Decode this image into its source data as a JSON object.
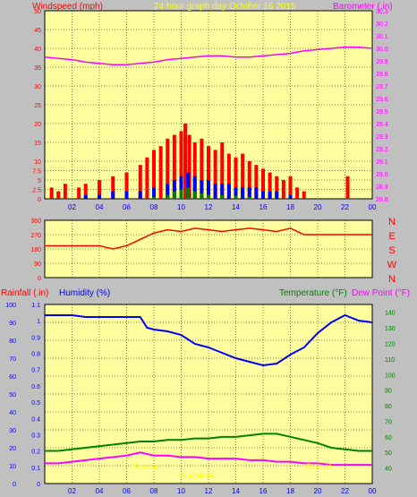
{
  "header": {
    "title": "24 hour graph day   October 16 2015",
    "windspeed_label": "Windspeed (mph)",
    "barometer_label": "Barometer (.in)"
  },
  "lower_header": {
    "rainfall_label": "Rainfall (.in)",
    "humidity_label": "Humidity (%)",
    "temperature_label": "Temperature (°F)",
    "dewpoint_label": "Dew Point (°F)"
  },
  "overlay": {
    "sunrise": "Sunrise",
    "noon": "Noontime",
    "sunset": "Sunset"
  },
  "colors": {
    "background": "#c0c0c0",
    "plot_bg": "#ffffa0",
    "grid": "#000000",
    "wind_gust": "#ff0000",
    "wind_avg": "#0000ff",
    "wind_low": "#008000",
    "barometer": "#ff00ff",
    "direction": "#ff0000",
    "humidity": "#0000ff",
    "temperature": "#008000",
    "dewpoint": "#ff00ff",
    "rainfall": "#0000ff",
    "title_yellow": "#ffff00",
    "windspeed_red": "#ff0000",
    "temp_green": "#008000"
  },
  "chart_data": [
    {
      "type": "bar",
      "title": "24 hour graph day   October 16 2015",
      "ylabel": "Windspeed (mph)",
      "y2label": "Barometer (.in)",
      "x_ticks": [
        "02",
        "04",
        "06",
        "08",
        "10",
        "12",
        "14",
        "16",
        "18",
        "20",
        "22",
        "00"
      ],
      "ylim": [
        0,
        50
      ],
      "y_ticks": [
        0,
        2.5,
        5,
        7.5,
        10,
        15,
        20,
        25,
        30,
        35,
        40,
        45,
        50
      ],
      "y2lim": [
        28.8,
        30.3
      ],
      "y2_ticks": [
        28.8,
        28.9,
        29.0,
        29.1,
        29.2,
        29.3,
        29.4,
        29.5,
        29.6,
        29.7,
        29.8,
        29.9,
        30.0,
        30.1,
        30.2,
        30.3
      ],
      "grid": true,
      "series": [
        {
          "key": "gust",
          "x": [
            0.5,
            1,
            1.5,
            2.5,
            3,
            4,
            5,
            6,
            7,
            7.5,
            8,
            8.5,
            9,
            9.5,
            10,
            10.3,
            10.6,
            11,
            11.5,
            12,
            12.5,
            13,
            13.5,
            14,
            14.5,
            15,
            15.5,
            16,
            16.5,
            17,
            17.5,
            18,
            18.5,
            19,
            22.2
          ],
          "values": [
            3,
            2,
            4,
            3,
            4,
            5,
            6,
            7,
            9,
            11,
            13,
            14,
            16,
            17,
            18,
            20,
            17,
            15,
            16,
            14,
            13,
            15,
            12,
            11,
            12,
            10,
            9,
            8,
            7,
            6,
            5,
            6,
            3,
            2,
            6
          ]
        },
        {
          "key": "avg",
          "x": [
            3,
            4,
            5,
            6,
            7,
            8,
            9,
            9.5,
            10,
            10.5,
            11,
            11.5,
            12,
            12.5,
            13,
            13.5,
            14,
            14.5,
            15,
            15.5,
            16,
            16.5,
            17,
            18
          ],
          "values": [
            1,
            1,
            2,
            2,
            2,
            3,
            4,
            5,
            6,
            7,
            6,
            5,
            5,
            4,
            4,
            4,
            3,
            3,
            3,
            3,
            2,
            2,
            2,
            1
          ]
        },
        {
          "key": "low",
          "x": [
            8,
            9,
            9.5,
            10,
            10.5,
            11,
            11.5,
            12,
            13,
            14,
            15
          ],
          "values": [
            0.5,
            1,
            2,
            2.5,
            3,
            2,
            1.5,
            1,
            1,
            0.8,
            0.5
          ]
        },
        {
          "key": "barometer",
          "x": [
            0,
            1,
            2,
            3,
            4,
            5,
            6,
            7,
            8,
            9,
            10,
            11,
            12,
            13,
            14,
            15,
            16,
            17,
            18,
            19,
            20,
            21,
            22,
            23,
            24
          ],
          "values": [
            29.93,
            29.92,
            29.91,
            29.89,
            29.88,
            29.87,
            29.87,
            29.88,
            29.89,
            29.91,
            29.92,
            29.93,
            29.94,
            29.94,
            29.93,
            29.93,
            29.94,
            29.95,
            29.96,
            29.98,
            29.99,
            30.0,
            30.01,
            30.01,
            30.0
          ]
        }
      ]
    },
    {
      "type": "line",
      "ylim": [
        0,
        360
      ],
      "y_ticks": [
        0,
        90,
        180,
        270,
        360
      ],
      "y2_labels": [
        "N",
        "W",
        "S",
        "E",
        "N"
      ],
      "series": [
        {
          "key": "direction",
          "x": [
            0,
            0.5,
            1,
            2,
            3,
            4,
            5,
            6,
            6.5,
            7,
            7.5,
            8,
            9,
            10,
            11,
            12,
            13,
            14,
            15,
            16,
            17,
            18,
            19,
            20,
            24
          ],
          "values": [
            200,
            200,
            200,
            200,
            200,
            200,
            180,
            200,
            220,
            240,
            260,
            280,
            300,
            290,
            310,
            300,
            290,
            300,
            310,
            300,
            290,
            310,
            270,
            270,
            270
          ]
        }
      ]
    },
    {
      "type": "line",
      "ylabel": "Humidity (%)",
      "y2label": "Temperature (°F)",
      "ylim": [
        0,
        100
      ],
      "y_ticks": [
        0,
        10,
        20,
        30,
        40,
        50,
        60,
        70,
        80,
        90,
        100
      ],
      "rain_ticks": [
        0,
        0.1,
        0.2,
        0.3,
        0.4,
        0.5,
        0.6,
        0.7,
        0.8,
        0.9,
        1,
        1.1
      ],
      "y2lim": [
        30,
        145
      ],
      "y2_ticks": [
        40,
        50,
        60,
        70,
        80,
        90,
        100,
        110,
        120,
        130,
        140
      ],
      "x_ticks": [
        "02",
        "04",
        "06",
        "08",
        "10",
        "12",
        "14",
        "16",
        "18",
        "20",
        "22",
        "00"
      ],
      "grid": true,
      "series": [
        {
          "key": "humidity",
          "x": [
            0,
            1,
            2,
            3,
            4,
            5,
            6,
            7,
            7.5,
            8,
            9,
            10,
            11,
            12,
            13,
            14,
            15,
            16,
            17,
            18,
            19,
            20,
            21,
            22,
            23,
            24
          ],
          "values": [
            94,
            94,
            94,
            93,
            93,
            93,
            93,
            93,
            87,
            86,
            85,
            83,
            78,
            76,
            73,
            70,
            68,
            66,
            67,
            72,
            76,
            84,
            90,
            94,
            91,
            90
          ]
        },
        {
          "key": "temperature",
          "x": [
            0,
            1,
            2,
            3,
            4,
            5,
            6,
            7,
            8,
            9,
            10,
            11,
            12,
            13,
            14,
            15,
            16,
            17,
            18,
            19,
            20,
            21,
            22,
            23,
            24
          ],
          "values": [
            51,
            51,
            52,
            53,
            54,
            55,
            56,
            57,
            57,
            58,
            58,
            59,
            59,
            60,
            60,
            61,
            62,
            62,
            60,
            58,
            56,
            53,
            52,
            51,
            51
          ]
        },
        {
          "key": "dewpoint",
          "x": [
            0,
            1,
            2,
            3,
            4,
            5,
            6,
            7,
            8,
            9,
            10,
            11,
            12,
            13,
            14,
            15,
            16,
            17,
            18,
            19,
            20,
            21,
            22,
            23,
            24
          ],
          "values": [
            43,
            43,
            44,
            45,
            46,
            47,
            48,
            50,
            48,
            48,
            47,
            47,
            46,
            46,
            46,
            45,
            45,
            44,
            44,
            43,
            43,
            42,
            42,
            42,
            42
          ]
        }
      ]
    }
  ]
}
